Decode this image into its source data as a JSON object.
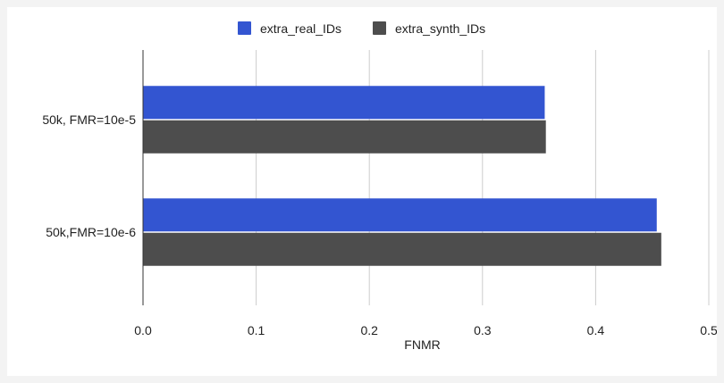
{
  "chart_data": {
    "type": "bar",
    "orientation": "horizontal",
    "categories": [
      "50k, FMR=10e-5",
      "50k,FMR=10e-6"
    ],
    "series": [
      {
        "name": "extra_real_IDs",
        "values": [
          0.355,
          0.454
        ],
        "color": "#3355d1"
      },
      {
        "name": "extra_synth_IDs",
        "values": [
          0.356,
          0.458
        ],
        "color": "#4d4d4d"
      }
    ],
    "xlabel": "FNMR",
    "ylabel": "",
    "xlim": [
      0,
      0.5
    ],
    "xticks": [
      0,
      0.1,
      0.2,
      0.3,
      0.4,
      0.5
    ],
    "xtick_labels": [
      "0.0",
      "0.1",
      "0.2",
      "0.3",
      "0.4",
      "0.5"
    ],
    "grid": true,
    "legend_position": "top-center"
  }
}
